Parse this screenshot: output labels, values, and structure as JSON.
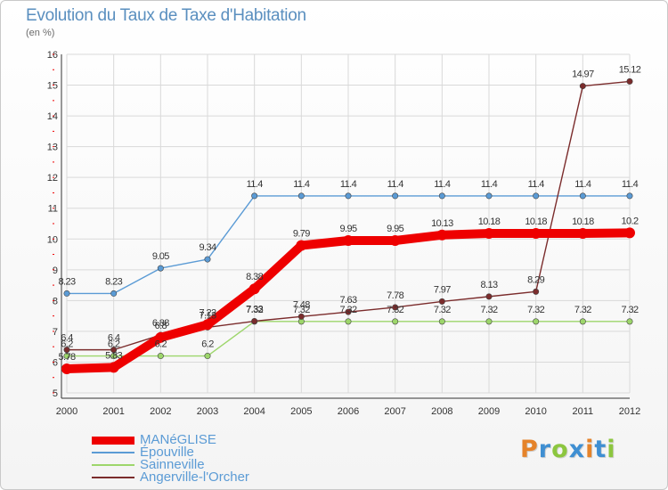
{
  "title": "Evolution du Taux de Taxe d'Habitation",
  "subtitle": "(en %)",
  "logo": {
    "letters": [
      "P",
      "r",
      "o",
      "x",
      "i",
      "t",
      "i"
    ],
    "colors": [
      "#e5832a",
      "#3f8fd2",
      "#8cc63f",
      "#3f8fd2",
      "#e5832a",
      "#3f8fd2",
      "#8cc63f"
    ]
  },
  "chart_data": {
    "type": "line",
    "title": "Evolution du Taux de Taxe d'Habitation",
    "xlabel": "",
    "ylabel": "(en %)",
    "x": [
      "2000",
      "2001",
      "2002",
      "2003",
      "2004",
      "2005",
      "2006",
      "2007",
      "2008",
      "2009",
      "2010",
      "2011",
      "2012"
    ],
    "ylim": [
      5,
      16
    ],
    "yticks": [
      "5",
      "6",
      "7",
      "8",
      "9",
      "10",
      "11",
      "12",
      "13",
      "14",
      "15",
      "16"
    ],
    "grid": true,
    "legend_position": "bottom-left",
    "series": [
      {
        "name": "MANéGLISE",
        "color": "#ee0000",
        "values": [
          5.78,
          5.83,
          6.8,
          7.22,
          8.38,
          9.79,
          9.95,
          9.95,
          10.13,
          10.18,
          10.18,
          10.18,
          10.2
        ],
        "labels": [
          "5.78",
          "5.83",
          "6.8",
          "7.22",
          "8.38",
          "9.79",
          "9.95",
          "9.95",
          "10.13",
          "10.18",
          "10.18",
          "10.18",
          "10.2"
        ]
      },
      {
        "name": "Épouville",
        "color": "#5b9bd5",
        "values": [
          8.23,
          8.23,
          9.05,
          9.34,
          11.4,
          11.4,
          11.4,
          11.4,
          11.4,
          11.4,
          11.4,
          11.4,
          11.4
        ],
        "labels": [
          "8.23",
          "8.23",
          "9.05",
          "9.34",
          "11.4",
          "11.4",
          "11.4",
          "11.4",
          "11.4",
          "11.4",
          "11.4",
          "11.4",
          "11.4"
        ]
      },
      {
        "name": "Sainneville",
        "color": "#9dd66b",
        "values": [
          6.2,
          6.2,
          6.2,
          6.2,
          7.32,
          7.32,
          7.32,
          7.32,
          7.32,
          7.32,
          7.32,
          7.32,
          7.32
        ],
        "labels": [
          "6.2",
          "6.2",
          "6.2",
          "6.2",
          "7.32",
          "7.32",
          "7.32",
          "7.32",
          "7.32",
          "7.32",
          "7.32",
          "7.32",
          "7.32"
        ]
      },
      {
        "name": "Angerville-l'Orcher",
        "color": "#7b2c2c",
        "values": [
          6.4,
          6.4,
          6.88,
          7.13,
          7.33,
          7.48,
          7.63,
          7.78,
          7.97,
          8.13,
          8.29,
          14.97,
          15.12
        ],
        "labels": [
          "6.4",
          "6.4",
          "6.88",
          "7.13",
          "7.33",
          "7.48",
          "7.63",
          "7.78",
          "7.97",
          "8.13",
          "8.29",
          "14.97",
          "15.12"
        ]
      }
    ]
  }
}
